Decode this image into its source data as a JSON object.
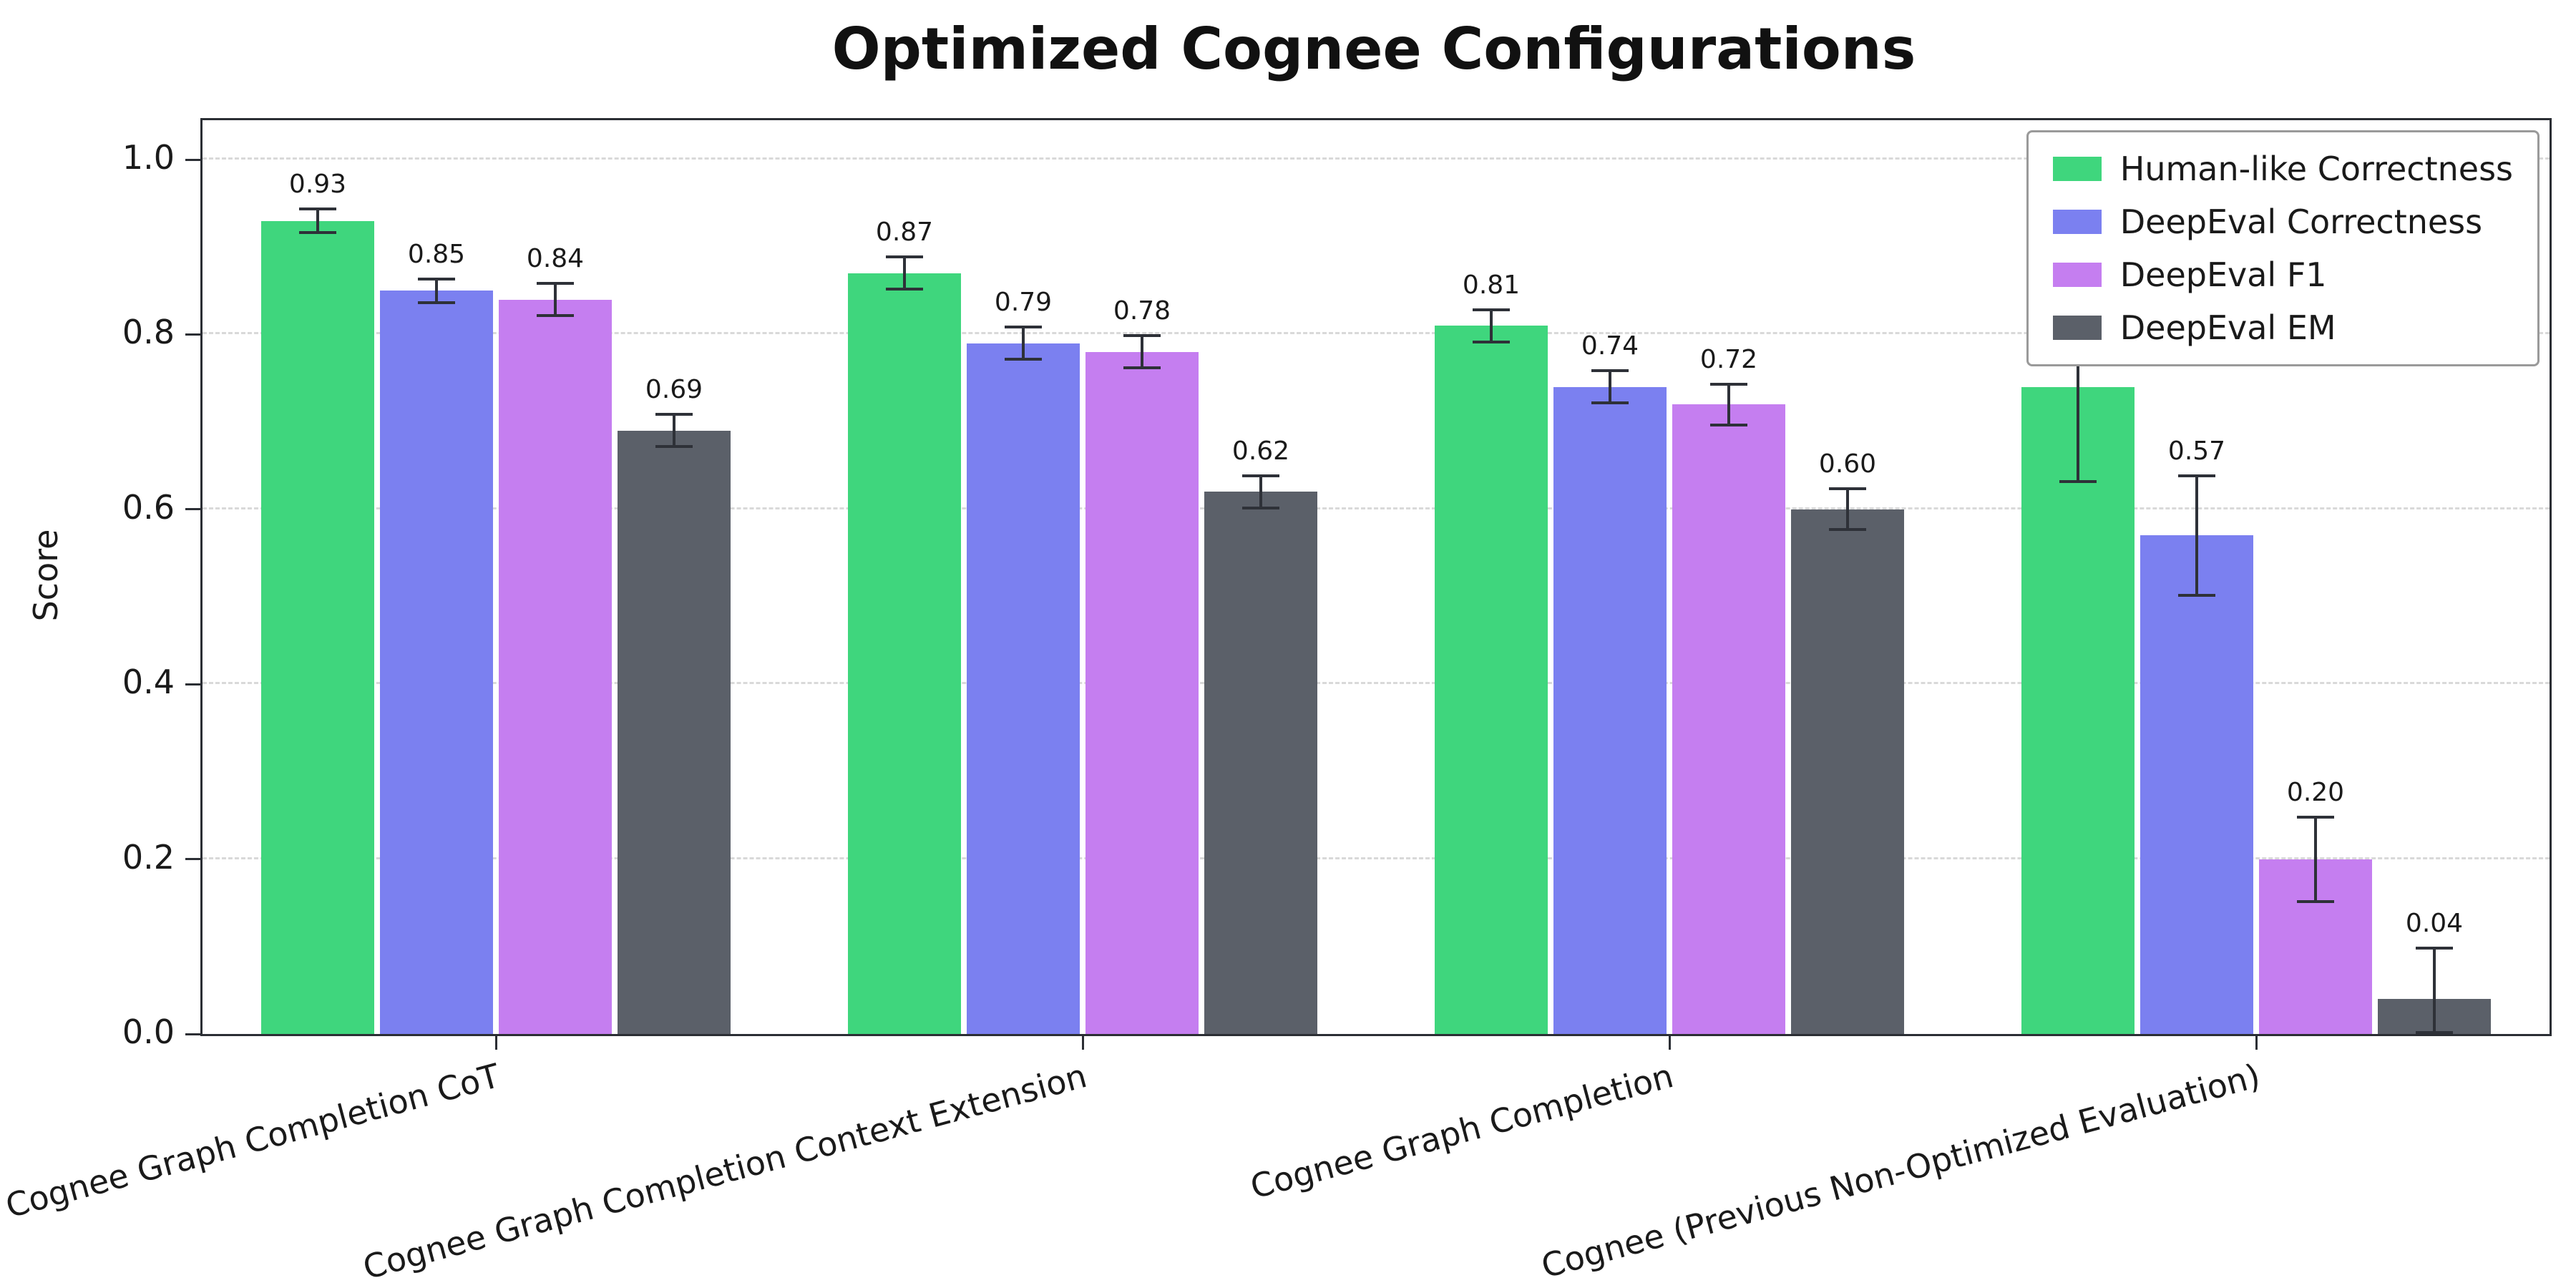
{
  "chart_data": {
    "type": "bar",
    "title": "Optimized Cognee Configurations",
    "xlabel": "",
    "ylabel": "Score",
    "ylim": [
      0,
      1.045
    ],
    "yticks": [
      0.0,
      0.2,
      0.4,
      0.6,
      0.8,
      1.0
    ],
    "grid": "horizontal-dashed",
    "legend_position": "upper right",
    "categories": [
      "Cognee Graph Completion CoT",
      "Cognee Graph Completion Context Extension",
      "Cognee Graph Completion",
      "Cognee (Previous Non-Optimized Evaluation)"
    ],
    "series": [
      {
        "name": "Human-like Correctness",
        "color": "#3fd67d",
        "values": [
          0.93,
          0.87,
          0.81,
          0.74
        ],
        "errors": [
          0.015,
          0.02,
          0.02,
          0.11
        ]
      },
      {
        "name": "DeepEval Correctness",
        "color": "#7b80f0",
        "values": [
          0.85,
          0.79,
          0.74,
          0.57
        ],
        "errors": [
          0.015,
          0.02,
          0.02,
          0.07
        ]
      },
      {
        "name": "DeepEval F1",
        "color": "#c57ef0",
        "values": [
          0.84,
          0.78,
          0.72,
          0.2
        ],
        "errors": [
          0.02,
          0.02,
          0.025,
          0.05
        ]
      },
      {
        "name": "DeepEval EM",
        "color": "#5b6069",
        "values": [
          0.69,
          0.62,
          0.6,
          0.04
        ],
        "errors": [
          0.02,
          0.02,
          0.025,
          0.06
        ]
      }
    ]
  }
}
